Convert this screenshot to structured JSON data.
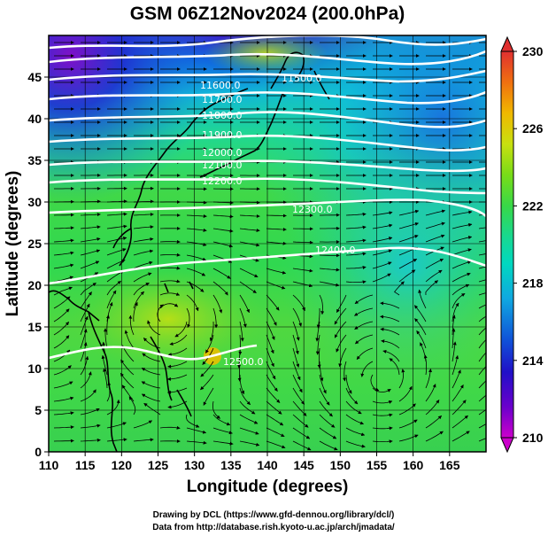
{
  "title": "GSM 06Z12Nov2024 (200.0hPa)",
  "map": {
    "x_axis_label": "Longitude (degrees)",
    "y_axis_label": "Latitude  (degrees)",
    "x_ticks": [
      "110",
      "115",
      "120",
      "125",
      "130",
      "135",
      "140",
      "145",
      "150",
      "155",
      "160",
      "165"
    ],
    "y_ticks": [
      "0",
      "5",
      "10",
      "15",
      "20",
      "25",
      "30",
      "35",
      "40",
      "45"
    ],
    "x_range": [
      110,
      170
    ],
    "y_range": [
      0,
      50
    ]
  },
  "colorbar": {
    "ticks": [
      "230",
      "226",
      "222",
      "218",
      "214",
      "210"
    ],
    "range": [
      210,
      230
    ],
    "colors": [
      "#cc00cc",
      "#6a00cc",
      "#2010c8",
      "#1060e0",
      "#00b0e0",
      "#00d8c0",
      "#18d890",
      "#40d840",
      "#60d820",
      "#a8e010",
      "#f0c000",
      "#f07010",
      "#e03030"
    ]
  },
  "contours": {
    "labels": [
      "11500.0",
      "11600.0",
      "11700.0",
      "11800.0",
      "11900.0",
      "12000.0",
      "12100.0",
      "12200.0",
      "12300.0",
      "12400.0",
      "12500.0"
    ]
  },
  "credits": {
    "line1": "Drawing by DCL (https://www.gfd-dennou.org/library/dcl/)",
    "line2": "Data from http://database.rish.kyoto-u.ac.jp/arch/jmadata/"
  }
}
